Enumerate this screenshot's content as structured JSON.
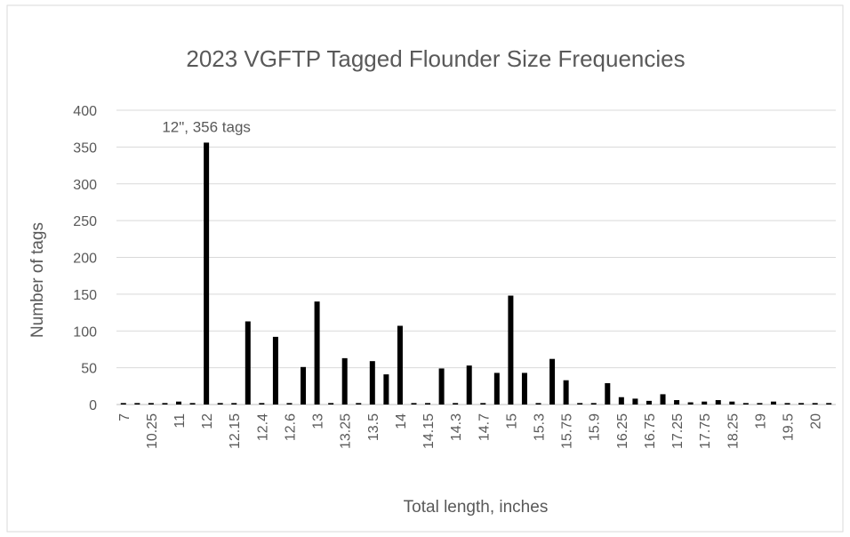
{
  "chart_data": {
    "type": "bar",
    "title": "2023 VGFTP Tagged Flounder Size Frequencies",
    "x_label": "Total length, inches",
    "y_label": "Number of tags",
    "annotation": "12\", 356  tags",
    "categories": [
      "7",
      null,
      "10.25",
      null,
      "11",
      null,
      "12",
      null,
      "12.15",
      null,
      "12.4",
      null,
      "12.6",
      null,
      "13",
      null,
      "13.25",
      null,
      "13.5",
      null,
      "14",
      null,
      "14.15",
      null,
      "14.3",
      null,
      "14.7",
      null,
      "15",
      null,
      "15.3",
      null,
      "15.75",
      null,
      "15.9",
      null,
      "16.25",
      null,
      "16.75",
      null,
      "17.25",
      null,
      "17.75",
      null,
      "18.25",
      null,
      "19",
      null,
      "19.5",
      null,
      "20",
      null
    ],
    "values": [
      2,
      2,
      2,
      2,
      4,
      2,
      356,
      2,
      2,
      113,
      2,
      92,
      2,
      51,
      140,
      2,
      63,
      2,
      59,
      41,
      107,
      2,
      2,
      49,
      2,
      53,
      2,
      43,
      148,
      43,
      2,
      62,
      33,
      2,
      2,
      29,
      10,
      8,
      5,
      14,
      6,
      3,
      4,
      6,
      4,
      2,
      2,
      4,
      2,
      2,
      2,
      2
    ],
    "color": "#000000",
    "ylim": [
      0,
      400
    ],
    "yticks": [
      0,
      50,
      100,
      150,
      200,
      250,
      300,
      350,
      400
    ],
    "grid": true
  }
}
